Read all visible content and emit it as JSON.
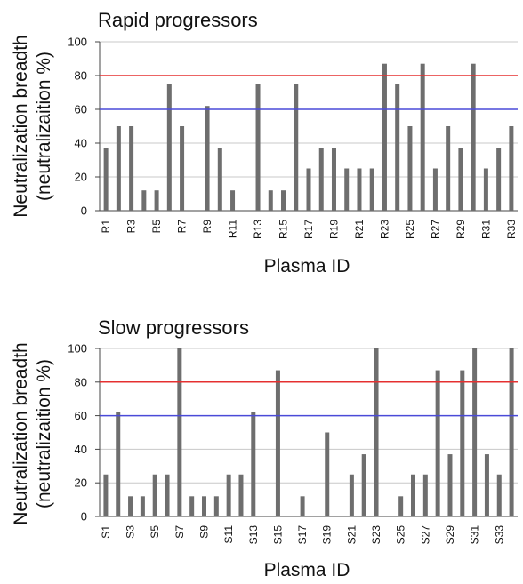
{
  "refs": {
    "line80_color": "#e53030",
    "line60_color": "#4a4ad8",
    "bar_color": "#6e6e6e",
    "grid_color": "#c8c8c8"
  },
  "chart_data": [
    {
      "type": "bar",
      "title": "Rapid progressors",
      "xlabel": "Plasma ID",
      "ylabel_line1": "Neutralization breadth",
      "ylabel_line2": "(neutralizaition %)",
      "ylim": [
        0,
        100
      ],
      "yticks": [
        0,
        20,
        40,
        60,
        80,
        100
      ],
      "reference_lines": [
        80,
        60
      ],
      "categories": [
        "R1",
        "R2",
        "R3",
        "R4",
        "R5",
        "R6",
        "R7",
        "R8",
        "R9",
        "R10",
        "R11",
        "R12",
        "R13",
        "R14",
        "R15",
        "R16",
        "R17",
        "R18",
        "R19",
        "R20",
        "R21",
        "R22",
        "R23",
        "R24",
        "R25",
        "R26",
        "R27",
        "R28",
        "R29",
        "R30",
        "R31",
        "R32",
        "R33"
      ],
      "tick_labels": [
        "R1",
        "R3",
        "R5",
        "R7",
        "R9",
        "R11",
        "R13",
        "R15",
        "R17",
        "R19",
        "R21",
        "R23",
        "R25",
        "R27",
        "R29",
        "R31",
        "R33"
      ],
      "values": [
        37,
        50,
        50,
        12,
        12,
        75,
        50,
        0,
        62,
        37,
        12,
        0,
        75,
        12,
        12,
        75,
        25,
        37,
        37,
        25,
        25,
        25,
        87,
        75,
        50,
        87,
        25,
        50,
        37,
        87,
        25,
        37,
        50
      ],
      "grid": true
    },
    {
      "type": "bar",
      "title": "Slow progressors",
      "xlabel": "Plasma ID",
      "ylabel_line1": "Neutralization breadth",
      "ylabel_line2": "(neutralizaition %)",
      "ylim": [
        0,
        100
      ],
      "yticks": [
        0,
        20,
        40,
        60,
        80,
        100
      ],
      "reference_lines": [
        80,
        60
      ],
      "categories": [
        "S1",
        "S2",
        "S3",
        "S4",
        "S5",
        "S6",
        "S7",
        "S8",
        "S9",
        "S10",
        "S11",
        "S12",
        "S13",
        "S14",
        "S15",
        "S16",
        "S17",
        "S18",
        "S19",
        "S20",
        "S21",
        "S22",
        "S23",
        "S24",
        "S25",
        "S26",
        "S27",
        "S28",
        "S29",
        "S30",
        "S31",
        "S32",
        "S33",
        "S34"
      ],
      "tick_labels": [
        "S1",
        "S3",
        "S5",
        "S7",
        "S9",
        "S11",
        "S13",
        "S15",
        "S17",
        "S19",
        "S21",
        "S23",
        "S25",
        "S27",
        "S29",
        "S31",
        "S33"
      ],
      "values": [
        25,
        62,
        12,
        12,
        25,
        25,
        100,
        12,
        12,
        12,
        25,
        25,
        62,
        0,
        87,
        0,
        12,
        0,
        50,
        0,
        25,
        37,
        100,
        0,
        12,
        25,
        25,
        87,
        37,
        87,
        100,
        37,
        25,
        100
      ],
      "grid": true
    }
  ]
}
